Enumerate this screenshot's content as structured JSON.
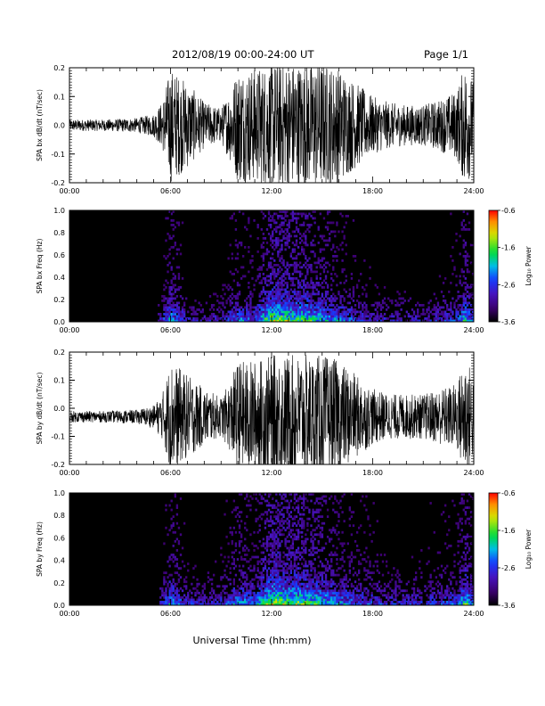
{
  "header": {
    "title": "2012/08/19   00:00-24:00 UT",
    "page": "Page 1/1"
  },
  "xaxis": {
    "label": "Universal Time (hh:mm)",
    "ticks": [
      "00:00",
      "06:00",
      "12:00",
      "18:00",
      "24:00"
    ],
    "range_hours": [
      0,
      24
    ]
  },
  "chart_data": [
    {
      "type": "line",
      "ylabel": "SPA bx dB/dt (nT/sec)",
      "ylim": [
        -0.2,
        0.2
      ],
      "yticks": [
        "0.2",
        "0.1",
        "0.0",
        "-0.1",
        "-0.2"
      ],
      "x_hours": [
        0,
        2,
        4,
        5,
        5.5,
        6,
        7,
        8,
        9,
        9.5,
        10,
        11,
        12,
        13,
        14,
        15,
        16,
        17,
        18,
        19,
        20,
        21,
        22,
        23,
        23.5,
        24
      ],
      "envelope": [
        0.02,
        0.02,
        0.025,
        0.04,
        0.08,
        0.2,
        0.15,
        0.08,
        0.06,
        0.12,
        0.2,
        0.2,
        0.22,
        0.22,
        0.22,
        0.22,
        0.2,
        0.15,
        0.1,
        0.08,
        0.07,
        0.07,
        0.09,
        0.12,
        0.22,
        0.15
      ],
      "baseline": 0.0,
      "color": "#000000"
    },
    {
      "type": "heatmap",
      "ylabel": "SPA bx Freq (Hz)",
      "ylim": [
        0.0,
        1.0
      ],
      "yticks": [
        "1.0",
        "0.8",
        "0.6",
        "0.4",
        "0.2",
        "0.0"
      ],
      "colorbar": {
        "label": "Log₁₀ Power",
        "ticks": [
          "-0.6",
          "-1.6",
          "-2.6",
          "-3.6"
        ],
        "range": [
          -3.6,
          -0.6
        ]
      },
      "x_hours": [
        0,
        2,
        4,
        5,
        5.5,
        6,
        7,
        8,
        9,
        9.5,
        10,
        11,
        12,
        13,
        14,
        15,
        16,
        17,
        18,
        19,
        20,
        21,
        22,
        23,
        23.5,
        24
      ],
      "activity": [
        0.1,
        0.1,
        0.15,
        0.2,
        0.45,
        0.7,
        0.4,
        0.35,
        0.4,
        0.5,
        0.6,
        0.55,
        0.9,
        0.85,
        0.8,
        0.7,
        0.6,
        0.5,
        0.45,
        0.4,
        0.4,
        0.4,
        0.45,
        0.5,
        0.75,
        0.5
      ]
    },
    {
      "type": "line",
      "ylabel": "SPA by dB/dt (nT/sec)",
      "ylim": [
        -0.2,
        0.2
      ],
      "yticks": [
        "0.2",
        "0.1",
        "0.0",
        "-0.1",
        "-0.2"
      ],
      "x_hours": [
        0,
        2,
        4,
        5,
        5.5,
        6,
        7,
        8,
        9,
        9.5,
        10,
        11,
        12,
        13,
        14,
        15,
        16,
        17,
        18,
        19,
        20,
        21,
        22,
        23,
        23.5,
        24
      ],
      "envelope": [
        0.02,
        0.02,
        0.025,
        0.04,
        0.08,
        0.2,
        0.15,
        0.1,
        0.07,
        0.12,
        0.2,
        0.2,
        0.22,
        0.22,
        0.22,
        0.22,
        0.2,
        0.15,
        0.1,
        0.08,
        0.08,
        0.08,
        0.1,
        0.12,
        0.22,
        0.15
      ],
      "baseline": -0.03,
      "color": "#000000"
    },
    {
      "type": "heatmap",
      "ylabel": "SPA by Freq (Hz)",
      "ylim": [
        0.0,
        1.0
      ],
      "yticks": [
        "1.0",
        "0.8",
        "0.6",
        "0.4",
        "0.2",
        "0.0"
      ],
      "colorbar": {
        "label": "Log₁₀ Power",
        "ticks": [
          "-0.6",
          "-1.6",
          "-2.6",
          "-3.6"
        ],
        "range": [
          -3.6,
          -0.6
        ]
      },
      "x_hours": [
        0,
        2,
        4,
        5,
        5.5,
        6,
        7,
        8,
        9,
        9.5,
        10,
        11,
        12,
        13,
        14,
        15,
        16,
        17,
        18,
        19,
        20,
        21,
        22,
        23,
        23.5,
        24
      ],
      "activity": [
        0.15,
        0.12,
        0.15,
        0.2,
        0.45,
        0.7,
        0.45,
        0.4,
        0.45,
        0.55,
        0.65,
        0.6,
        0.95,
        0.9,
        0.85,
        0.75,
        0.65,
        0.55,
        0.5,
        0.45,
        0.45,
        0.45,
        0.5,
        0.55,
        0.8,
        0.55
      ]
    }
  ]
}
